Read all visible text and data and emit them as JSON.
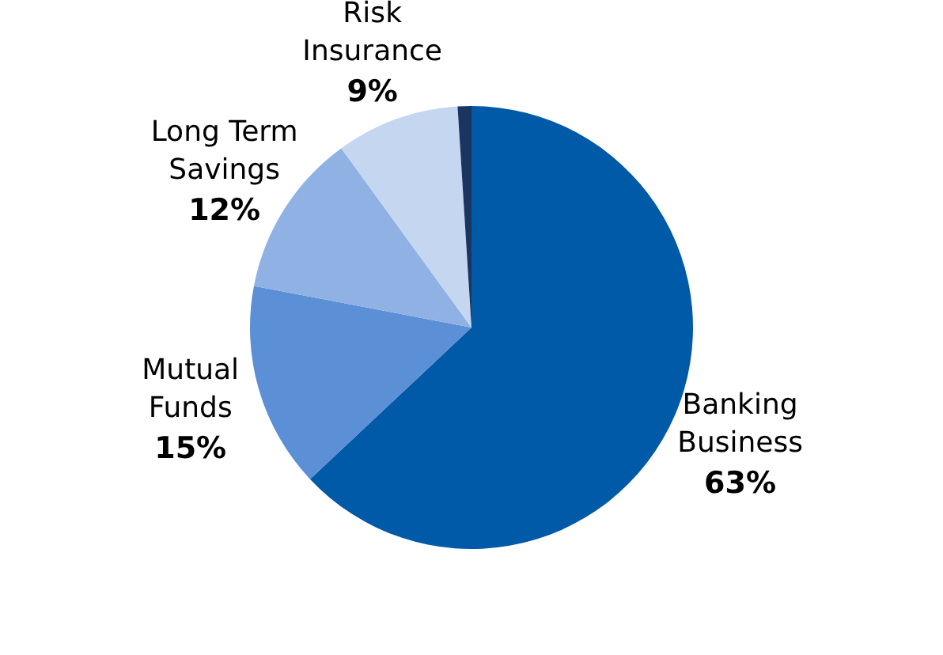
{
  "chart_data": {
    "type": "pie",
    "categories": [
      "Banking Business",
      "Mutual Funds",
      "Long Term Savings",
      "Risk Insurance",
      null
    ],
    "values": [
      63,
      15,
      12,
      9,
      1
    ],
    "colors": [
      "#005aa7",
      "#5b8fd6",
      "#8fb1e3",
      "#c5d6f0",
      "#1a3560"
    ],
    "value_labels": [
      "63%",
      "15%",
      "12%",
      "9%",
      null
    ]
  }
}
